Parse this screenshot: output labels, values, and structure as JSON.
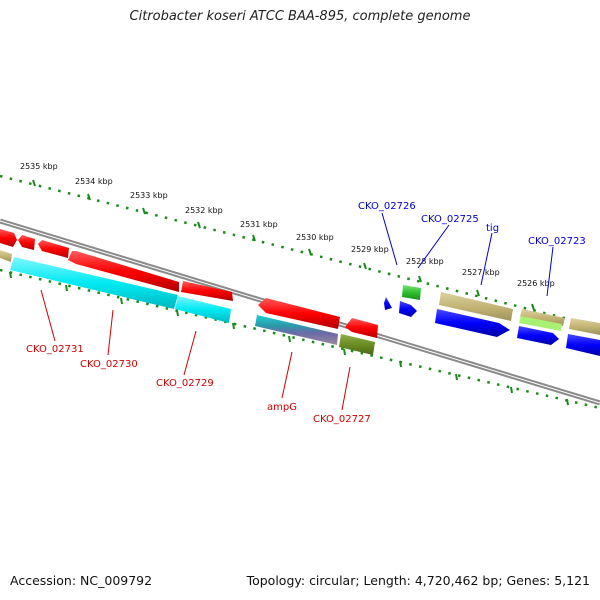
{
  "title": "Citrobacter koseri ATCC BAA-895, complete genome",
  "footer": {
    "accession_label": "Accession:",
    "accession": "NC_009792",
    "topology_label": "Topology:",
    "topology": "circular",
    "length_label": "Length:",
    "length": "4,720,462 bp",
    "genes_label": "Genes:",
    "genes": "5,121"
  },
  "scale_labels": [
    "2535 kbp",
    "2534 kbp",
    "2533 kbp",
    "2532 kbp",
    "2531 kbp",
    "2530 kbp",
    "2529 kbp",
    "2528 kbp",
    "2527 kbp",
    "2526 kbp"
  ],
  "gene_labels": {
    "cko_02731": "CKO_02731",
    "cko_02730": "CKO_02730",
    "cko_02729": "CKO_02729",
    "ampg": "ampG",
    "cko_02727": "CKO_02727",
    "cko_02726": "CKO_02726",
    "cko_02725": "CKO_02725",
    "tig": "tig",
    "cko_02723": "CKO_02723"
  },
  "colors": {
    "forward_cds": "#ff0000",
    "reverse_cds": "#0000ff",
    "cyan_feature": "#00e5ee",
    "olive_feature": "#c8b878",
    "green_feature": "#33cc33",
    "lightgreen_feature": "#a8f070",
    "darkolive_feature": "#6b8e23",
    "backbone": "#888888",
    "ticks": "#228b22",
    "label_red": "#cc0000",
    "label_blue": "#0000cc"
  }
}
